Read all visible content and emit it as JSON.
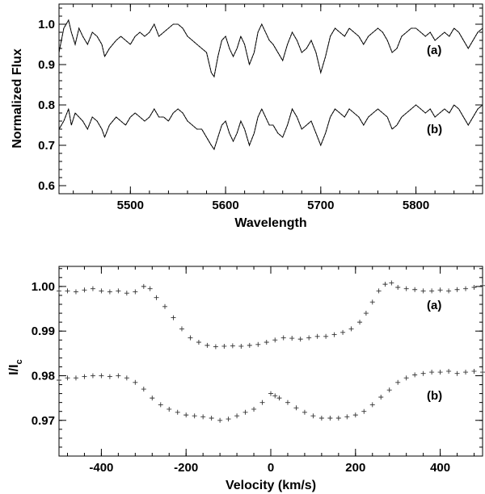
{
  "chart_data": [
    {
      "type": "line",
      "xlabel": "Wavelength",
      "ylabel": "Normalized Flux",
      "xlim": [
        5425,
        5870
      ],
      "ylim": [
        0.58,
        1.05
      ],
      "xticks": [
        5500,
        5600,
        5700,
        5800
      ],
      "xtick_labels": [
        "5500",
        "5600",
        "5700",
        "5800"
      ],
      "yticks": [
        0.6,
        0.7,
        0.8,
        0.9,
        1.0
      ],
      "ytick_labels": [
        "0.6",
        "0.7",
        "0.8",
        "0.9",
        "1.0"
      ],
      "grid": false,
      "series": [
        {
          "label": "(a)",
          "x": [
            5425,
            5430,
            5435,
            5438,
            5442,
            5446,
            5450,
            5455,
            5460,
            5465,
            5470,
            5473,
            5478,
            5485,
            5490,
            5495,
            5500,
            5505,
            5510,
            5515,
            5520,
            5525,
            5530,
            5535,
            5540,
            5545,
            5550,
            5555,
            5560,
            5565,
            5570,
            5575,
            5580,
            5585,
            5588,
            5592,
            5596,
            5600,
            5604,
            5608,
            5612,
            5616,
            5620,
            5625,
            5630,
            5634,
            5638,
            5642,
            5646,
            5650,
            5655,
            5660,
            5665,
            5670,
            5675,
            5680,
            5685,
            5690,
            5695,
            5700,
            5705,
            5710,
            5715,
            5720,
            5725,
            5730,
            5735,
            5740,
            5745,
            5750,
            5755,
            5760,
            5765,
            5770,
            5775,
            5780,
            5785,
            5790,
            5795,
            5800,
            5805,
            5810,
            5815,
            5820,
            5825,
            5830,
            5835,
            5840,
            5845,
            5850,
            5855,
            5860,
            5865,
            5870
          ],
          "y": [
            0.93,
            0.99,
            1.01,
            0.98,
            0.95,
            0.99,
            0.97,
            0.95,
            0.98,
            0.97,
            0.95,
            0.92,
            0.94,
            0.96,
            0.97,
            0.96,
            0.95,
            0.97,
            0.98,
            0.97,
            0.98,
            1.0,
            0.97,
            0.98,
            0.99,
            1.0,
            1.0,
            0.99,
            0.97,
            0.96,
            0.95,
            0.94,
            0.93,
            0.88,
            0.87,
            0.92,
            0.96,
            0.97,
            0.94,
            0.92,
            0.94,
            0.97,
            0.95,
            0.9,
            0.93,
            0.98,
            1.0,
            0.98,
            0.96,
            0.95,
            0.93,
            0.91,
            0.95,
            0.98,
            0.96,
            0.93,
            0.94,
            0.96,
            0.93,
            0.88,
            0.92,
            0.97,
            0.99,
            0.98,
            0.97,
            0.99,
            0.98,
            0.97,
            0.95,
            0.97,
            0.98,
            0.99,
            0.98,
            0.96,
            0.93,
            0.94,
            0.97,
            0.98,
            0.99,
            0.99,
            0.98,
            0.97,
            0.98,
            0.96,
            0.97,
            0.98,
            0.97,
            0.99,
            0.98,
            0.96,
            0.94,
            0.96,
            0.98,
            0.99
          ]
        },
        {
          "label": "(b)",
          "x": [
            5425,
            5430,
            5435,
            5438,
            5442,
            5446,
            5450,
            5455,
            5460,
            5465,
            5470,
            5473,
            5478,
            5485,
            5490,
            5495,
            5500,
            5505,
            5510,
            5515,
            5520,
            5525,
            5530,
            5535,
            5540,
            5545,
            5550,
            5555,
            5560,
            5565,
            5570,
            5575,
            5580,
            5585,
            5588,
            5592,
            5596,
            5600,
            5604,
            5608,
            5612,
            5616,
            5620,
            5625,
            5630,
            5634,
            5638,
            5642,
            5646,
            5650,
            5655,
            5660,
            5665,
            5670,
            5675,
            5680,
            5685,
            5690,
            5695,
            5700,
            5705,
            5710,
            5715,
            5720,
            5725,
            5730,
            5735,
            5740,
            5745,
            5750,
            5755,
            5760,
            5765,
            5770,
            5775,
            5780,
            5785,
            5790,
            5795,
            5800,
            5805,
            5810,
            5815,
            5820,
            5825,
            5830,
            5835,
            5840,
            5845,
            5850,
            5855,
            5860,
            5865,
            5870
          ],
          "y": [
            0.74,
            0.76,
            0.79,
            0.75,
            0.78,
            0.77,
            0.76,
            0.74,
            0.77,
            0.76,
            0.74,
            0.72,
            0.75,
            0.77,
            0.76,
            0.75,
            0.77,
            0.78,
            0.77,
            0.76,
            0.77,
            0.79,
            0.77,
            0.77,
            0.76,
            0.78,
            0.79,
            0.78,
            0.76,
            0.75,
            0.74,
            0.74,
            0.72,
            0.7,
            0.69,
            0.72,
            0.75,
            0.76,
            0.73,
            0.71,
            0.73,
            0.76,
            0.74,
            0.7,
            0.73,
            0.77,
            0.79,
            0.77,
            0.75,
            0.75,
            0.73,
            0.72,
            0.75,
            0.79,
            0.77,
            0.74,
            0.75,
            0.76,
            0.73,
            0.7,
            0.73,
            0.77,
            0.79,
            0.78,
            0.77,
            0.79,
            0.78,
            0.77,
            0.75,
            0.77,
            0.78,
            0.79,
            0.78,
            0.77,
            0.74,
            0.75,
            0.77,
            0.78,
            0.79,
            0.8,
            0.79,
            0.78,
            0.79,
            0.77,
            0.78,
            0.79,
            0.78,
            0.8,
            0.79,
            0.77,
            0.75,
            0.77,
            0.79,
            0.8
          ]
        }
      ]
    },
    {
      "type": "scatter",
      "xlabel": "Velocity (km/s)",
      "ylabel_main": "I/I",
      "ylabel_sub": "c",
      "xlim": [
        -500,
        500
      ],
      "ylim": [
        0.962,
        1.0045
      ],
      "xticks": [
        -400,
        -200,
        0,
        200,
        400
      ],
      "xtick_labels": [
        "-400",
        "-200",
        "0",
        "200",
        "400"
      ],
      "yticks": [
        0.97,
        0.98,
        0.99,
        1.0
      ],
      "ytick_labels": [
        "0.97",
        "0.98",
        "0.99",
        "1.00"
      ],
      "grid": false,
      "series": [
        {
          "label": "(a)",
          "x": [
            -500,
            -480,
            -460,
            -440,
            -420,
            -400,
            -380,
            -360,
            -340,
            -320,
            -300,
            -285,
            -270,
            -250,
            -230,
            -210,
            -190,
            -170,
            -150,
            -130,
            -110,
            -90,
            -70,
            -50,
            -30,
            -10,
            10,
            30,
            50,
            70,
            90,
            110,
            130,
            150,
            170,
            190,
            210,
            225,
            240,
            255,
            270,
            285,
            300,
            320,
            340,
            360,
            380,
            400,
            420,
            440,
            460,
            480,
            500
          ],
          "y": [
            0.999,
            0.999,
            0.9988,
            0.9992,
            0.9995,
            0.999,
            0.9988,
            0.999,
            0.9985,
            0.9988,
            1.0,
            0.9995,
            0.9975,
            0.9955,
            0.993,
            0.9905,
            0.9885,
            0.9875,
            0.9868,
            0.9865,
            0.9866,
            0.9867,
            0.9866,
            0.9868,
            0.987,
            0.9875,
            0.988,
            0.9885,
            0.9884,
            0.9882,
            0.9885,
            0.9888,
            0.9888,
            0.9892,
            0.9897,
            0.9905,
            0.992,
            0.994,
            0.9965,
            0.999,
            1.0005,
            1.0008,
            0.9998,
            0.9995,
            0.9993,
            0.999,
            0.999,
            0.9992,
            0.999,
            0.9993,
            0.9995,
            0.9998,
            1.0002
          ]
        },
        {
          "label": "(b)",
          "x": [
            -500,
            -480,
            -460,
            -440,
            -420,
            -400,
            -380,
            -360,
            -340,
            -320,
            -300,
            -280,
            -260,
            -240,
            -220,
            -200,
            -180,
            -160,
            -140,
            -120,
            -100,
            -80,
            -60,
            -40,
            -20,
            0,
            10,
            20,
            40,
            60,
            80,
            100,
            120,
            140,
            160,
            180,
            200,
            220,
            240,
            260,
            280,
            300,
            320,
            340,
            360,
            380,
            400,
            420,
            440,
            460,
            480,
            500
          ],
          "y": [
            0.979,
            0.9795,
            0.9795,
            0.9798,
            0.98,
            0.98,
            0.9798,
            0.98,
            0.9795,
            0.9785,
            0.977,
            0.975,
            0.9735,
            0.9725,
            0.9718,
            0.9712,
            0.971,
            0.9708,
            0.9705,
            0.97,
            0.9703,
            0.971,
            0.9718,
            0.9725,
            0.974,
            0.976,
            0.9755,
            0.975,
            0.974,
            0.9728,
            0.9718,
            0.971,
            0.9705,
            0.9705,
            0.9705,
            0.9708,
            0.9712,
            0.972,
            0.9735,
            0.9752,
            0.9768,
            0.9785,
            0.9795,
            0.9802,
            0.9805,
            0.9808,
            0.9808,
            0.981,
            0.9805,
            0.9808,
            0.981,
            0.9808
          ]
        }
      ]
    }
  ]
}
